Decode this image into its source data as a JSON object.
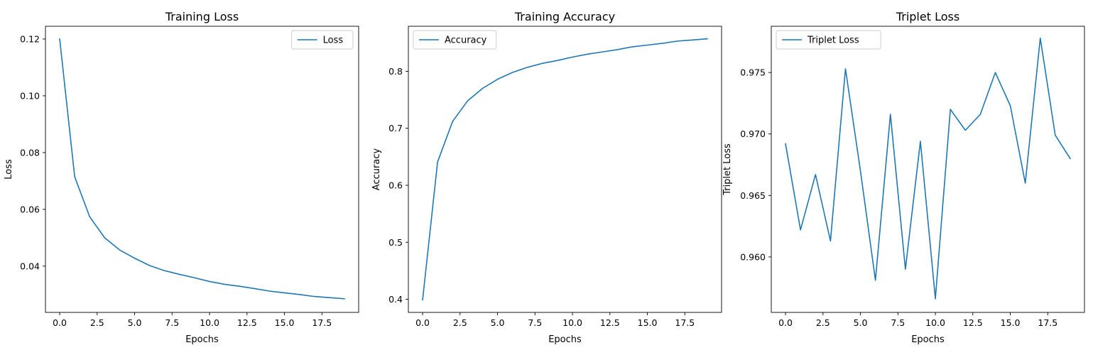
{
  "chart_data": [
    {
      "type": "line",
      "title": "Training Loss",
      "xlabel": "Epochs",
      "ylabel": "Loss",
      "xlim": [
        -0.95,
        19.95
      ],
      "ylim": [
        0.0237,
        0.1245
      ],
      "xticks": [
        0,
        2.5,
        5,
        7.5,
        10,
        12.5,
        15,
        17.5
      ],
      "xtick_labels": [
        "0.0",
        "2.5",
        "5.0",
        "7.5",
        "10.0",
        "12.5",
        "15.0",
        "17.5"
      ],
      "yticks": [
        0.04,
        0.06,
        0.08,
        0.1,
        0.12
      ],
      "ytick_labels": [
        "0.04",
        "0.06",
        "0.08",
        "0.10",
        "0.12"
      ],
      "grid": false,
      "legend_position": "upper right",
      "series": [
        {
          "name": "Loss",
          "color": "#1f77b4",
          "x": [
            0,
            1,
            2,
            3,
            4,
            5,
            6,
            7,
            8,
            9,
            10,
            11,
            12,
            13,
            14,
            15,
            16,
            17,
            18,
            19
          ],
          "y": [
            0.12,
            0.0715,
            0.0574,
            0.05,
            0.0457,
            0.0428,
            0.0402,
            0.0384,
            0.0371,
            0.0359,
            0.0346,
            0.0336,
            0.0329,
            0.0321,
            0.0312,
            0.0306,
            0.03,
            0.0293,
            0.0289,
            0.0285
          ]
        }
      ]
    },
    {
      "type": "line",
      "title": "Training Accuracy",
      "xlabel": "Epochs",
      "ylabel": "Accuracy",
      "xlim": [
        -0.95,
        19.95
      ],
      "ylim": [
        0.377,
        0.879
      ],
      "xticks": [
        0,
        2.5,
        5,
        7.5,
        10,
        12.5,
        15,
        17.5
      ],
      "xtick_labels": [
        "0.0",
        "2.5",
        "5.0",
        "7.5",
        "10.0",
        "12.5",
        "15.0",
        "17.5"
      ],
      "yticks": [
        0.4,
        0.5,
        0.6,
        0.7,
        0.8
      ],
      "ytick_labels": [
        "0.4",
        "0.5",
        "0.6",
        "0.7",
        "0.8"
      ],
      "grid": false,
      "legend_position": "upper left",
      "series": [
        {
          "name": "Accuracy",
          "color": "#1f77b4",
          "x": [
            0,
            1,
            2,
            3,
            4,
            5,
            6,
            7,
            8,
            9,
            10,
            11,
            12,
            13,
            14,
            15,
            16,
            17,
            18,
            19
          ],
          "y": [
            0.399,
            0.641,
            0.712,
            0.748,
            0.77,
            0.786,
            0.798,
            0.807,
            0.814,
            0.819,
            0.825,
            0.83,
            0.834,
            0.838,
            0.843,
            0.846,
            0.849,
            0.853,
            0.855,
            0.857
          ]
        }
      ]
    },
    {
      "type": "line",
      "title": "Triplet Loss",
      "xlabel": "Epochs",
      "ylabel": "Triplet Loss",
      "xlim": [
        -0.95,
        19.95
      ],
      "ylim": [
        0.95549,
        0.97876
      ],
      "xticks": [
        0,
        2.5,
        5,
        7.5,
        10,
        12.5,
        15,
        17.5
      ],
      "xtick_labels": [
        "0.0",
        "2.5",
        "5.0",
        "7.5",
        "10.0",
        "12.5",
        "15.0",
        "17.5"
      ],
      "yticks": [
        0.96,
        0.965,
        0.97,
        0.975
      ],
      "ytick_labels": [
        "0.960",
        "0.965",
        "0.970",
        "0.975"
      ],
      "grid": false,
      "legend_position": "upper left",
      "series": [
        {
          "name": "Triplet Loss",
          "color": "#1f77b4",
          "x": [
            0,
            1,
            2,
            3,
            4,
            5,
            6,
            7,
            8,
            9,
            10,
            11,
            12,
            13,
            14,
            15,
            16,
            17,
            18,
            19
          ],
          "y": [
            0.9692,
            0.9622,
            0.9667,
            0.9613,
            0.9753,
            0.967,
            0.9581,
            0.9716,
            0.959,
            0.9694,
            0.9566,
            0.972,
            0.9703,
            0.9716,
            0.975,
            0.9723,
            0.966,
            0.9778,
            0.9699,
            0.968
          ]
        }
      ]
    }
  ]
}
